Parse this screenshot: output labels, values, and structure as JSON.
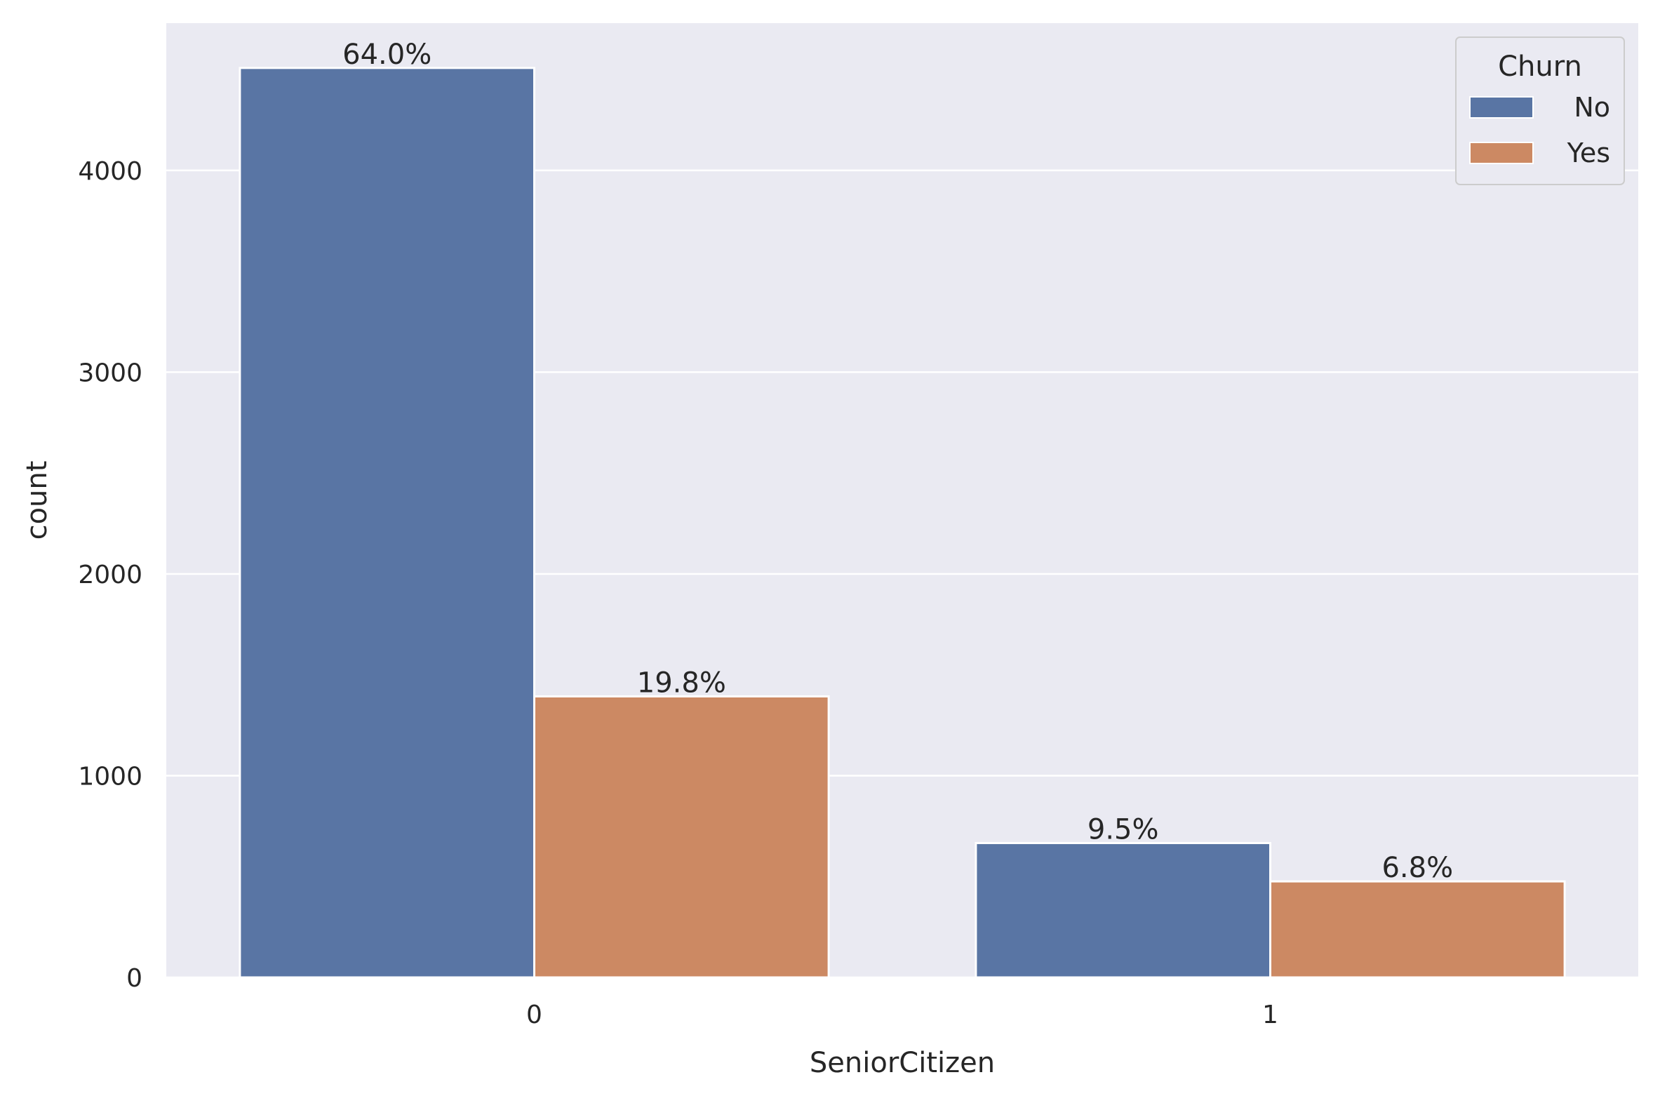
{
  "chart_data": {
    "type": "bar",
    "xlabel": "SeniorCitizen",
    "ylabel": "count",
    "categories": [
      "0",
      "1"
    ],
    "ylim": [
      0,
      4730
    ],
    "yticks": [
      0,
      1000,
      2000,
      3000,
      4000
    ],
    "grid": true,
    "legend": {
      "title": "Churn",
      "placement": "top-right"
    },
    "series": [
      {
        "name": "No",
        "color": "#5975a4",
        "values": [
          4508,
          666
        ],
        "labels": [
          "64.0%",
          "9.5%"
        ]
      },
      {
        "name": "Yes",
        "color": "#cc8963",
        "values": [
          1393,
          476
        ],
        "labels": [
          "19.8%",
          "6.8%"
        ]
      }
    ],
    "background": "#eaeaf2"
  }
}
